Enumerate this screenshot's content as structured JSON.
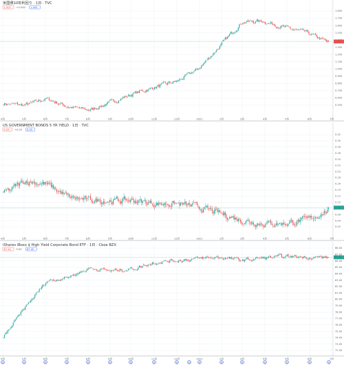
{
  "colors": {
    "up": "#26a69a",
    "down": "#ef5350",
    "grid": "#eef0f3",
    "axis": "#d0d3d8",
    "event": "#2962ff"
  },
  "panes": [
    {
      "symbol": "米国債10年利回り",
      "interval": "1日",
      "source": "TVC",
      "chip_left": "1.402",
      "chip_mid": "+0.000",
      "chip_right": "1.400",
      "last_label": "1.402",
      "last_color": "#ef5350",
      "y_labels": [
        "1.800",
        "1.700",
        "1.600",
        "1.500",
        "1.400",
        "1.300",
        "1.200",
        "1.100",
        "1.000",
        "0.900",
        "0.800",
        "0.700",
        "0.600",
        "0.500"
      ],
      "icon": "more-icon"
    },
    {
      "symbol": "US GOVERNMENT BONDS 5 YR YIELD",
      "interval": "1日",
      "source": "TVC",
      "chip_left": "0.09",
      "chip_mid": "+0.00",
      "chip_right": "0.09",
      "last_label": "0.09",
      "last_color": "#26a69a",
      "y_labels": [
        "0.32",
        "0.30",
        "0.28",
        "0.26",
        "0.24",
        "0.22",
        "0.20",
        "0.18",
        "0.16",
        "0.14",
        "0.12",
        "0.10",
        "0.08",
        "0.06",
        "0.04",
        "0.02"
      ],
      "icon": "more-icon"
    },
    {
      "symbol": "iShares iBoxx $ High Yield Corporate Bond ETF",
      "interval": "1日",
      "source": "Cboe BZX",
      "chip_left": "87.44",
      "chip_mid": "0.00",
      "chip_right": "87.45",
      "last_label": "87.45",
      "last_color": "#26a69a",
      "y_labels": [
        "88.00",
        "87.00",
        "86.00",
        "85.00",
        "84.00",
        "83.00",
        "82.00",
        "81.00",
        "80.00",
        "79.00",
        "78.00",
        "77.00",
        "76.00",
        "75.00",
        "74.00",
        "73.00",
        "72.00"
      ],
      "icon": "more-icon"
    }
  ],
  "x_labels": [
    "4月",
    "5月",
    "6月",
    "7月",
    "8月",
    "9月",
    "10月",
    "11月",
    "12月",
    "2021",
    "2月",
    "3月",
    "4月",
    "5月",
    "6月",
    "7月"
  ],
  "event_marker": "D",
  "chart_data": [
    {
      "type": "candlestick",
      "title": "米国債10年利回り",
      "ylim": [
        0.5,
        1.8
      ],
      "x": [
        "4月",
        "5月",
        "6月",
        "7月",
        "8月",
        "9月",
        "10月",
        "11月",
        "12月",
        "2021",
        "2月",
        "3月",
        "4月",
        "5月",
        "6月",
        "7月"
      ],
      "close_by_month": [
        0.66,
        0.64,
        0.72,
        0.62,
        0.58,
        0.68,
        0.78,
        0.86,
        0.93,
        1.08,
        1.36,
        1.65,
        1.66,
        1.58,
        1.52,
        1.4
      ]
    },
    {
      "type": "candlestick",
      "title": "US GOVERNMENT BONDS 5 YR YIELD",
      "ylim": [
        0.01,
        0.33
      ],
      "x": [
        "4月",
        "5月",
        "6月",
        "7月",
        "8月",
        "9月",
        "10月",
        "11月",
        "12月",
        "2021",
        "2月",
        "3月",
        "4月",
        "5月",
        "6月",
        "7月"
      ],
      "close_by_month": [
        0.14,
        0.18,
        0.17,
        0.13,
        0.12,
        0.12,
        0.12,
        0.11,
        0.11,
        0.1,
        0.08,
        0.06,
        0.05,
        0.05,
        0.06,
        0.09
      ]
    },
    {
      "type": "candlestick",
      "title": "iShares iBoxx $ High Yield Corporate Bond ETF",
      "ylim": [
        71.5,
        88.5
      ],
      "x": [
        "4月",
        "5月",
        "6月",
        "7月",
        "8月",
        "9月",
        "10月",
        "11月",
        "12月",
        "2021",
        "2月",
        "3月",
        "4月",
        "5月",
        "6月",
        "7月"
      ],
      "close_by_month": [
        74.0,
        79.0,
        83.5,
        84.2,
        85.7,
        85.2,
        85.6,
        86.7,
        87.0,
        87.3,
        87.5,
        87.0,
        87.4,
        87.6,
        87.6,
        87.45
      ]
    }
  ]
}
